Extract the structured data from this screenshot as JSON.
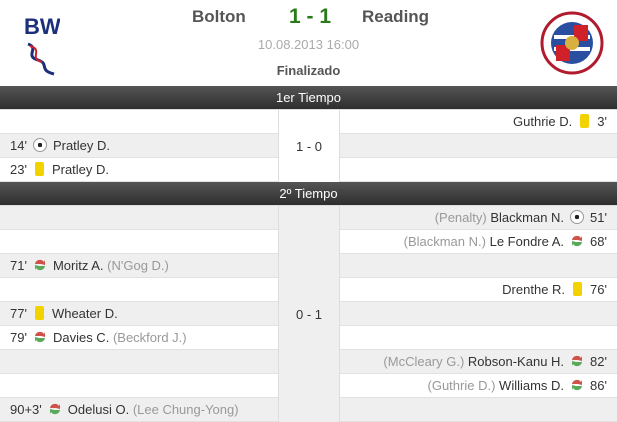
{
  "match": {
    "home": "Bolton",
    "away": "Reading",
    "score": "1 - 1",
    "datetime": "10.08.2013 16:00",
    "status": "Finalizado"
  },
  "colors": {
    "score": "#2a7a1a",
    "yellow_card": "#f2d200"
  },
  "halves": [
    {
      "title": "1er Tiempo",
      "score": "1 - 0",
      "events": [
        {
          "side": "away",
          "minute": "3'",
          "icon": "yellow-card",
          "player": "Guthrie D.",
          "extra": ""
        },
        {
          "side": "home",
          "minute": "14'",
          "icon": "goal-ball",
          "player": "Pratley D.",
          "extra": ""
        },
        {
          "side": "home",
          "minute": "23'",
          "icon": "yellow-card",
          "player": "Pratley D.",
          "extra": ""
        }
      ]
    },
    {
      "title": "2º Tiempo",
      "score": "0 - 1",
      "events": [
        {
          "side": "away",
          "minute": "51'",
          "icon": "goal-ball",
          "player": "Blackman N.",
          "extra": "(Penalty)"
        },
        {
          "side": "away",
          "minute": "68'",
          "icon": "substitution",
          "player": "Le Fondre A.",
          "extra": "(Blackman N.)"
        },
        {
          "side": "home",
          "minute": "71'",
          "icon": "substitution",
          "player": "Moritz A.",
          "extra": "(N'Gog D.)"
        },
        {
          "side": "away",
          "minute": "76'",
          "icon": "yellow-card",
          "player": "Drenthe R.",
          "extra": ""
        },
        {
          "side": "home",
          "minute": "77'",
          "icon": "yellow-card",
          "player": "Wheater D.",
          "extra": ""
        },
        {
          "side": "home",
          "minute": "79'",
          "icon": "substitution",
          "player": "Davies C.",
          "extra": "(Beckford J.)"
        },
        {
          "side": "away",
          "minute": "82'",
          "icon": "substitution",
          "player": "Robson-Kanu H.",
          "extra": "(McCleary G.)"
        },
        {
          "side": "away",
          "minute": "86'",
          "icon": "substitution",
          "player": "Williams D.",
          "extra": "(Guthrie D.)"
        },
        {
          "side": "home",
          "minute": "90+3'",
          "icon": "substitution",
          "player": "Odelusi O.",
          "extra": "(Lee Chung-Yong)"
        }
      ]
    }
  ]
}
